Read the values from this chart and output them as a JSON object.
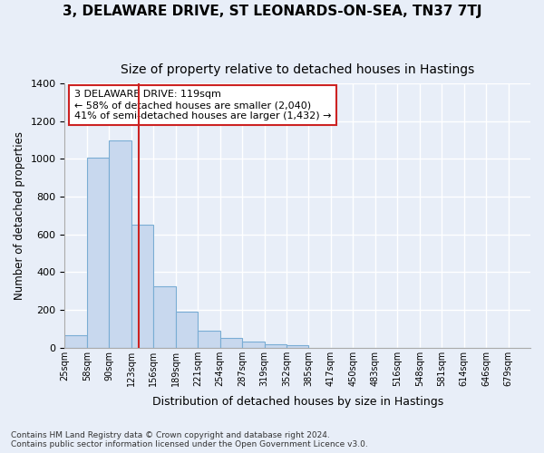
{
  "title1": "3, DELAWARE DRIVE, ST LEONARDS-ON-SEA, TN37 7TJ",
  "title2": "Size of property relative to detached houses in Hastings",
  "xlabel": "Distribution of detached houses by size in Hastings",
  "ylabel": "Number of detached properties",
  "footnote1": "Contains HM Land Registry data © Crown copyright and database right 2024.",
  "footnote2": "Contains public sector information licensed under the Open Government Licence v3.0.",
  "bin_labels": [
    "25sqm",
    "58sqm",
    "90sqm",
    "123sqm",
    "156sqm",
    "189sqm",
    "221sqm",
    "254sqm",
    "287sqm",
    "319sqm",
    "352sqm",
    "385sqm",
    "417sqm",
    "450sqm",
    "483sqm",
    "516sqm",
    "548sqm",
    "581sqm",
    "614sqm",
    "646sqm",
    "679sqm"
  ],
  "bar_heights": [
    65,
    1005,
    1100,
    650,
    325,
    190,
    90,
    50,
    30,
    20,
    15,
    0,
    0,
    0,
    0,
    0,
    0,
    0,
    0,
    0,
    0
  ],
  "bar_color": "#c8d8ee",
  "bar_edge_color": "#7aadd4",
  "vline_bin_index": 2.85,
  "vline_color": "#cc2222",
  "annotation_text": "3 DELAWARE DRIVE: 119sqm\n← 58% of detached houses are smaller (2,040)\n41% of semi-detached houses are larger (1,432) →",
  "annotation_box_color": "#cc2222",
  "ylim": [
    0,
    1400
  ],
  "yticks": [
    0,
    200,
    400,
    600,
    800,
    1000,
    1200,
    1400
  ],
  "background_color": "#e8eef8",
  "plot_bg_color": "#e8eef8",
  "grid_color": "#ffffff",
  "title1_fontsize": 11,
  "title2_fontsize": 10
}
